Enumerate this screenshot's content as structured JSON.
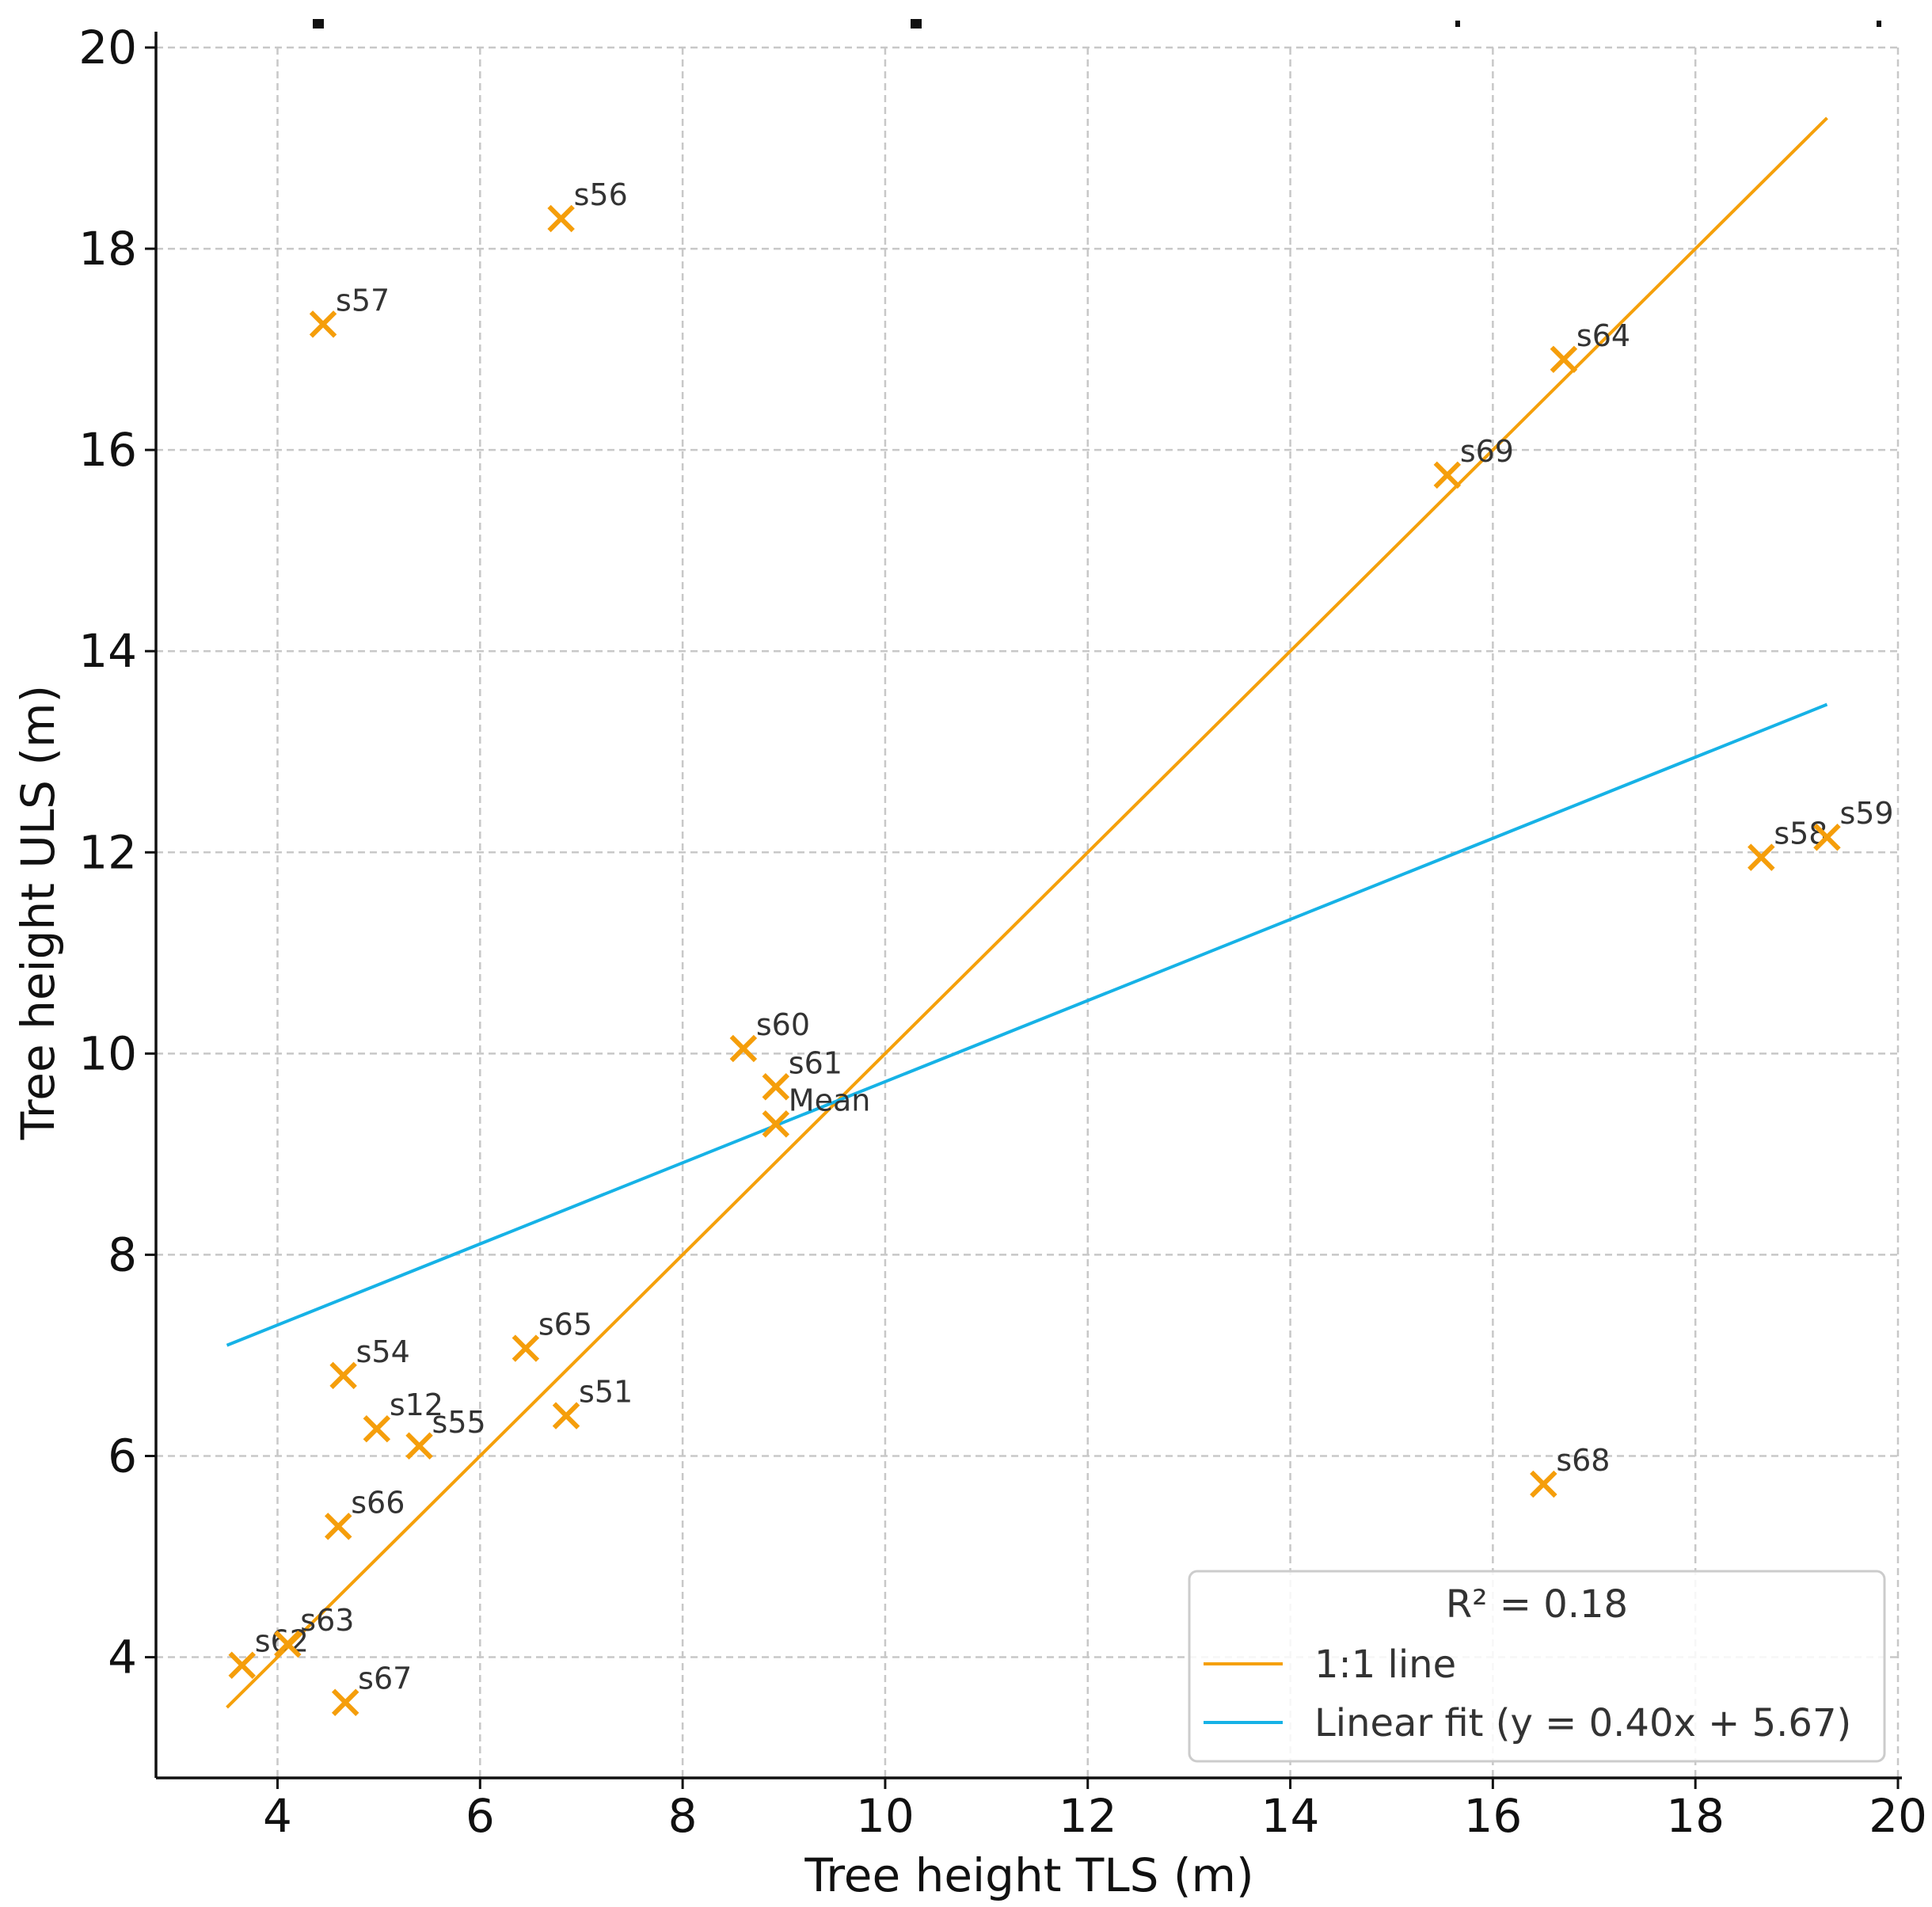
{
  "chart_data": {
    "type": "scatter",
    "title": "",
    "xlabel": "Tree height TLS (m)",
    "ylabel": "Tree height ULS (m)",
    "xlim": [
      2.8,
      20.0
    ],
    "ylim": [
      2.8,
      20.0
    ],
    "xticks": [
      4,
      6,
      8,
      10,
      12,
      14,
      16,
      18,
      20
    ],
    "yticks": [
      4,
      6,
      8,
      10,
      12,
      14,
      16,
      18,
      20
    ],
    "grid": true,
    "points": [
      {
        "label": "s56",
        "x": 6.8,
        "y": 18.3
      },
      {
        "label": "s57",
        "x": 4.45,
        "y": 17.25
      },
      {
        "label": "s64",
        "x": 16.7,
        "y": 16.9
      },
      {
        "label": "s69",
        "x": 15.55,
        "y": 15.75
      },
      {
        "label": "s58",
        "x": 18.65,
        "y": 11.95
      },
      {
        "label": "s59",
        "x": 19.3,
        "y": 12.15
      },
      {
        "label": "s60",
        "x": 8.6,
        "y": 10.05
      },
      {
        "label": "s61",
        "x": 8.92,
        "y": 9.67
      },
      {
        "label": "Mean",
        "x": 8.92,
        "y": 9.3
      },
      {
        "label": "s65",
        "x": 6.45,
        "y": 7.07
      },
      {
        "label": "s54",
        "x": 4.65,
        "y": 6.8
      },
      {
        "label": "s51",
        "x": 6.85,
        "y": 6.4
      },
      {
        "label": "s12",
        "x": 4.98,
        "y": 6.27
      },
      {
        "label": "s55",
        "x": 5.4,
        "y": 6.1
      },
      {
        "label": "s66",
        "x": 4.6,
        "y": 5.3
      },
      {
        "label": "s68",
        "x": 16.5,
        "y": 5.72
      },
      {
        "label": "s62",
        "x": 3.65,
        "y": 3.92
      },
      {
        "label": "s63",
        "x": 4.1,
        "y": 4.13
      },
      {
        "label": "s67",
        "x": 4.67,
        "y": 3.55
      }
    ],
    "series": [
      {
        "name": "1:1 line",
        "x": [
          3.5,
          19.3
        ],
        "y": [
          3.5,
          19.3
        ],
        "color": "#f5a00a"
      },
      {
        "name": "Linear fit (y = 0.40x + 5.67)",
        "x": [
          3.5,
          19.3
        ],
        "y": [
          7.1,
          13.47
        ],
        "color": "#16b2e6"
      }
    ],
    "marker_color": "#f59e0b",
    "legend": {
      "title": "R² = 0.18",
      "placement": "lower-right",
      "entries": [
        "1:1 line",
        "Linear fit (y = 0.40x + 5.67)"
      ]
    }
  }
}
